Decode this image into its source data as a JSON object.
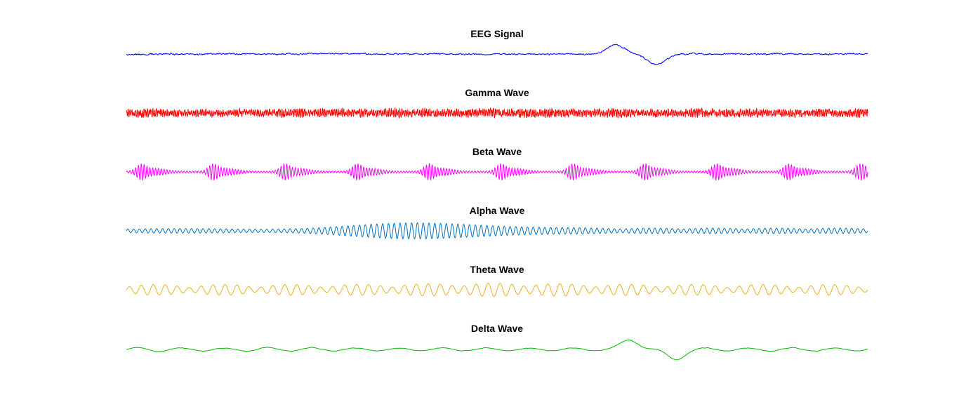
{
  "chart_data": [
    {
      "type": "line",
      "title": "EEG Signal",
      "color": "#0000ff",
      "xlabel": "",
      "ylabel": "",
      "grid": false,
      "axes_visible": false,
      "waveform": "broadband-eeg",
      "ylim": [
        -1,
        1
      ],
      "events": [
        {
          "x": 0.66,
          "amplitude": 0.95,
          "label": ""
        },
        {
          "x": 0.715,
          "amplitude": -1.1,
          "label": ""
        }
      ]
    },
    {
      "type": "line",
      "title": "Gamma Wave",
      "color": "#ff0000",
      "xlabel": "",
      "ylabel": "",
      "grid": false,
      "axes_visible": false,
      "waveform": "high-frequency-oscillation",
      "ylim": [
        -1,
        1
      ]
    },
    {
      "type": "line",
      "title": "Beta Wave",
      "color": "#ff00ff",
      "xlabel": "",
      "ylabel": "",
      "grid": false,
      "axes_visible": false,
      "waveform": "periodic-bursts",
      "burst_count": 11,
      "ylim": [
        -1,
        1
      ]
    },
    {
      "type": "line",
      "title": "Alpha Wave",
      "color": "#0072bd",
      "xlabel": "",
      "ylabel": "",
      "grid": false,
      "axes_visible": false,
      "waveform": "amplitude-modulated-oscillation",
      "ylim": [
        -1,
        1
      ]
    },
    {
      "type": "line",
      "title": "Theta Wave",
      "color": "#edb120",
      "xlabel": "",
      "ylabel": "",
      "grid": false,
      "axes_visible": false,
      "waveform": "amplitude-modulated-oscillation",
      "ylim": [
        -1,
        1
      ]
    },
    {
      "type": "line",
      "title": "Delta Wave",
      "color": "#00bb00",
      "xlabel": "",
      "ylabel": "",
      "grid": false,
      "axes_visible": false,
      "waveform": "slow-wave",
      "ylim": [
        -1,
        1
      ],
      "events": [
        {
          "x": 0.68,
          "amplitude": 1.0,
          "label": ""
        },
        {
          "x": 0.74,
          "amplitude": -0.95,
          "label": ""
        }
      ]
    }
  ]
}
